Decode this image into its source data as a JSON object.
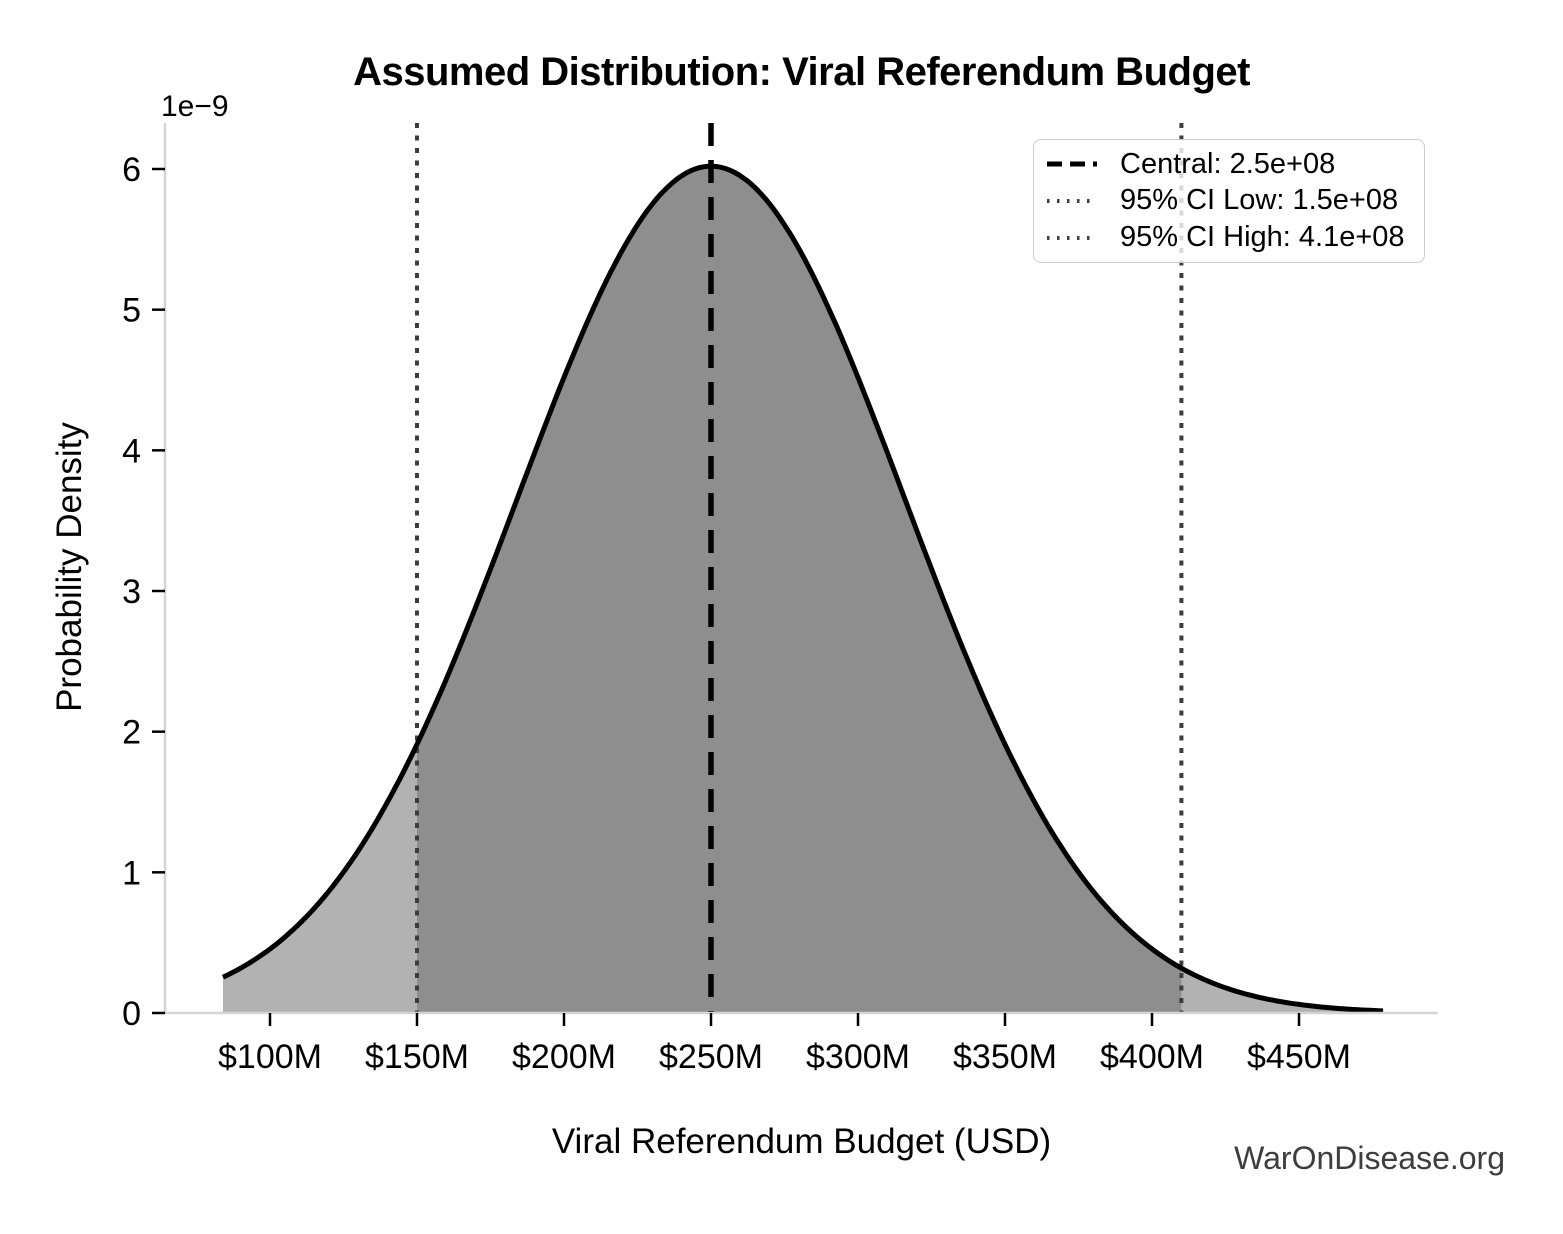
{
  "title": "Assumed Distribution: Viral Referendum Budget",
  "watermark": "WarOnDisease.org",
  "axes": {
    "xlabel": "Viral Referendum Budget (USD)",
    "ylabel": "Probability Density",
    "offset_label": "1e−9"
  },
  "legend": {
    "position": "upper right",
    "items": [
      {
        "label": "Central: 2.5e+08",
        "style": "dashed",
        "color": "#000000"
      },
      {
        "label": "95% CI Low: 1.5e+08",
        "style": "dotted",
        "color": "#3d3d3d"
      },
      {
        "label": "95% CI High: 4.1e+08",
        "style": "dotted",
        "color": "#3d3d3d"
      }
    ]
  },
  "chart_data": {
    "type": "area",
    "title": "Assumed Distribution: Viral Referendum Budget",
    "xlabel": "Viral Referendum Budget (USD)",
    "ylabel": "Probability Density",
    "y_scale_offset": "1e−9",
    "x_unit": "USD (values in $ millions below)",
    "y_unit": "probability density × 1e-9",
    "x_ticks": [
      {
        "label": "$100M",
        "value": 100
      },
      {
        "label": "$150M",
        "value": 150
      },
      {
        "label": "$200M",
        "value": 200
      },
      {
        "label": "$250M",
        "value": 250
      },
      {
        "label": "$300M",
        "value": 300
      },
      {
        "label": "$350M",
        "value": 350
      },
      {
        "label": "$400M",
        "value": 400
      },
      {
        "label": "$450M",
        "value": 450
      }
    ],
    "y_ticks": [
      {
        "label": "0",
        "value": 0
      },
      {
        "label": "1",
        "value": 1
      },
      {
        "label": "2",
        "value": 2
      },
      {
        "label": "3",
        "value": 3
      },
      {
        "label": "4",
        "value": 4
      },
      {
        "label": "5",
        "value": 5
      },
      {
        "label": "6",
        "value": 6
      }
    ],
    "xlim": [
      64,
      497
    ],
    "ylim": [
      0,
      6.33
    ],
    "grid": false,
    "curve": {
      "shape": "normal",
      "mean": 250,
      "sigma": 66,
      "peak_density": 6.02,
      "x_start": 84,
      "x_end": 478.6
    },
    "markers": {
      "central": {
        "value_musd": 250,
        "value_label": "2.5e+08",
        "style": "dashed"
      },
      "ci_low": {
        "value_musd": 150,
        "value_label": "1.5e+08",
        "style": "dotted"
      },
      "ci_high": {
        "value_musd": 410,
        "value_label": "4.1e+08",
        "style": "dotted"
      }
    },
    "shaded_regions": [
      {
        "name": "full-distribution",
        "from": 84,
        "to": 478.6,
        "color": "#b2b2b2"
      },
      {
        "name": "95-percent-ci",
        "from": 150,
        "to": 410,
        "color": "#8e8e8e"
      }
    ]
  },
  "colors": {
    "curve": "#000000",
    "fill_light": "#b2b2b2",
    "fill_dark": "#8e8e8e",
    "central_line": "#000000",
    "ci_line": "#3d3d3d",
    "spine": "#d4d4d4",
    "tick": "#000000",
    "tick_label": "#000000",
    "watermark": "#3d3d3d",
    "legend_border": "#cccccc",
    "background": "#ffffff"
  }
}
